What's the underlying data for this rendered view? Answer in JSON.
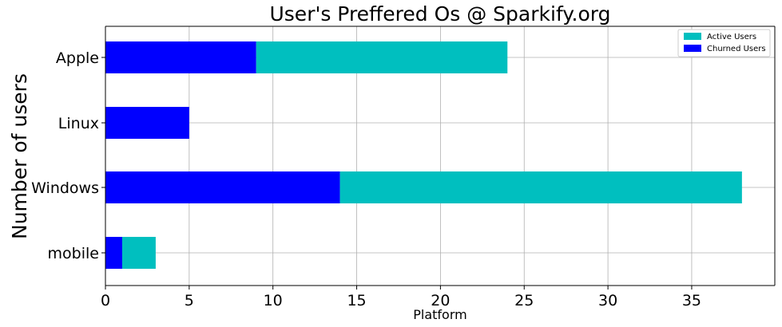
{
  "chart_data": {
    "type": "bar",
    "orientation": "horizontal",
    "stacked": true,
    "title": "User's Preffered Os @ Sparkify.org",
    "xlabel": "Platform",
    "ylabel": "Number of users",
    "categories": [
      "Apple",
      "Linux",
      "Windows",
      "mobile"
    ],
    "series": [
      {
        "name": "Churned Users",
        "values": [
          9,
          5,
          14,
          1
        ],
        "color": "#0000ff"
      },
      {
        "name": "Active Users",
        "values": [
          15,
          0,
          24,
          2
        ],
        "color": "#00bfbf"
      }
    ],
    "legend_order": [
      "Active Users",
      "Churned Users"
    ],
    "xlim": [
      0,
      40
    ],
    "xticks": [
      0,
      5,
      10,
      15,
      20,
      25,
      30,
      35
    ],
    "grid": true,
    "legend_position": "top-right"
  }
}
